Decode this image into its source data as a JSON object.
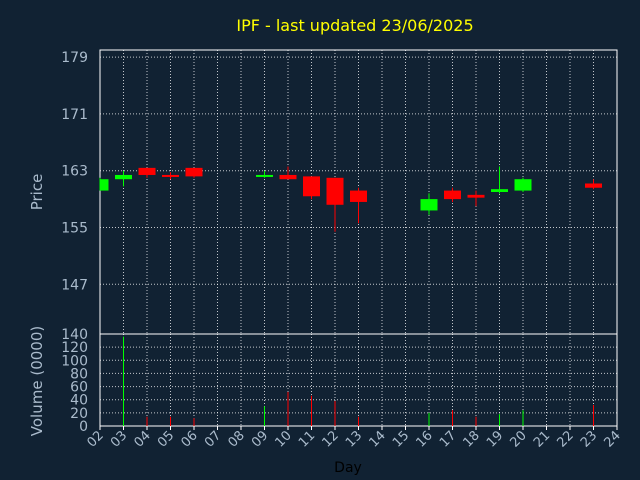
{
  "chart_data": {
    "type": "candlestick",
    "title": "IPF - last updated 23/06/2025",
    "xlabel": "Day",
    "ylabel_price": "Price",
    "ylabel_volume": "Volume (0000)",
    "x_ticks": [
      "02",
      "03",
      "04",
      "05",
      "06",
      "07",
      "08",
      "09",
      "10",
      "11",
      "12",
      "13",
      "14",
      "15",
      "16",
      "17",
      "18",
      "19",
      "20",
      "21",
      "22",
      "23",
      "24"
    ],
    "price_ticks": [
      179,
      171,
      163,
      155,
      147,
      140
    ],
    "price_ylim": [
      140,
      180
    ],
    "volume_ticks": [
      0,
      20,
      40,
      60,
      80,
      100,
      120
    ],
    "volume_ylim": [
      0,
      140
    ],
    "grid": true,
    "colors": {
      "up": "#00ff00",
      "down": "#ff0000",
      "title": "#ffff00",
      "axis_text": "#aabbcc",
      "background": "#112233"
    },
    "candles": [
      {
        "day": "02",
        "open": 160.2,
        "high": 162.0,
        "low": 160.2,
        "close": 161.8,
        "volume": 0
      },
      {
        "day": "03",
        "open": 161.8,
        "high": 163.0,
        "low": 160.8,
        "close": 162.4,
        "volume": 136
      },
      {
        "day": "04",
        "open": 163.4,
        "high": 163.4,
        "low": 162.0,
        "close": 162.4,
        "volume": 14
      },
      {
        "day": "05",
        "open": 162.4,
        "high": 162.8,
        "low": 161.8,
        "close": 162.2,
        "volume": 14
      },
      {
        "day": "06",
        "open": 163.4,
        "high": 163.4,
        "low": 162.0,
        "close": 162.2,
        "volume": 12
      },
      {
        "day": "09",
        "open": 162.2,
        "high": 163.0,
        "low": 162.0,
        "close": 162.4,
        "volume": 30
      },
      {
        "day": "10",
        "open": 162.4,
        "high": 163.6,
        "low": 161.8,
        "close": 161.8,
        "volume": 52
      },
      {
        "day": "11",
        "open": 162.2,
        "high": 162.2,
        "low": 159.0,
        "close": 159.4,
        "volume": 46
      },
      {
        "day": "12",
        "open": 162.0,
        "high": 162.0,
        "low": 154.4,
        "close": 158.2,
        "volume": 38
      },
      {
        "day": "13",
        "open": 160.2,
        "high": 160.6,
        "low": 155.6,
        "close": 158.6,
        "volume": 14
      },
      {
        "day": "16",
        "open": 157.4,
        "high": 159.8,
        "low": 156.8,
        "close": 159.0,
        "volume": 20
      },
      {
        "day": "17",
        "open": 160.2,
        "high": 160.6,
        "low": 158.6,
        "close": 159.0,
        "volume": 24
      },
      {
        "day": "18",
        "open": 159.6,
        "high": 160.2,
        "low": 158.0,
        "close": 159.2,
        "volume": 14
      },
      {
        "day": "19",
        "open": 160.0,
        "high": 163.6,
        "low": 159.8,
        "close": 160.4,
        "volume": 18
      },
      {
        "day": "20",
        "open": 160.2,
        "high": 162.0,
        "low": 160.0,
        "close": 161.8,
        "volume": 24
      },
      {
        "day": "23",
        "open": 161.2,
        "high": 161.8,
        "low": 160.4,
        "close": 160.6,
        "volume": 32
      }
    ]
  }
}
